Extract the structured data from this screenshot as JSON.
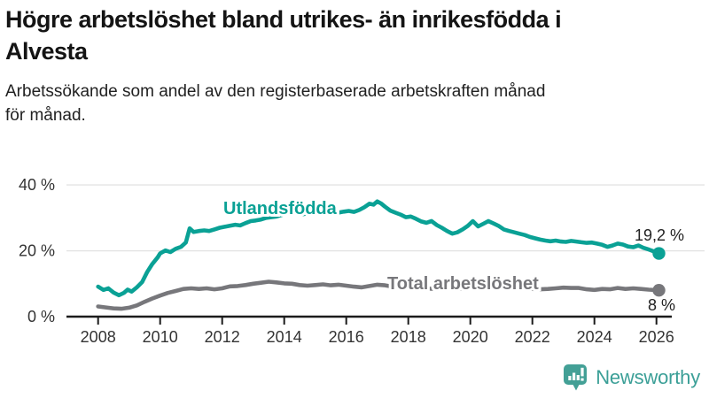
{
  "header": {
    "title_line1": "Högre arbetslöshet bland utrikes- än inrikesfödda i",
    "title_line2": "Alvesta",
    "subtitle_line1": "Arbetssökande som andel av den registerbaserade arbetskraften månad",
    "subtitle_line2": "för månad."
  },
  "chart_data": {
    "type": "line",
    "title": "Högre arbetslöshet bland utrikes- än inrikesfödda i Alvesta",
    "subtitle": "Arbetssökande som andel av den registerbaserade arbetskraften månad för månad.",
    "grid": "horizontal",
    "x_axis": {
      "ticks": [
        2008,
        2010,
        2012,
        2014,
        2016,
        2018,
        2020,
        2022,
        2024,
        2026
      ],
      "range": [
        2007.6,
        2026.6
      ]
    },
    "y_axis": {
      "unit": "%",
      "tick_values": [
        0,
        20,
        40
      ],
      "tick_labels": [
        "0 %",
        "20 %",
        "40 %"
      ],
      "range": [
        0,
        40
      ]
    },
    "series": [
      {
        "id": "utlandsfodda",
        "name": "Utlandsfödda",
        "color": "#0aa195",
        "end_label": "19,2 %",
        "points": [
          [
            2008.0,
            9.1
          ],
          [
            2008.17,
            8.1
          ],
          [
            2008.33,
            8.6
          ],
          [
            2008.5,
            7.3
          ],
          [
            2008.67,
            6.5
          ],
          [
            2008.83,
            7.2
          ],
          [
            2008.95,
            8.2
          ],
          [
            2009.08,
            7.6
          ],
          [
            2009.25,
            8.9
          ],
          [
            2009.42,
            10.5
          ],
          [
            2009.58,
            13.5
          ],
          [
            2009.75,
            16.0
          ],
          [
            2009.92,
            18.0
          ],
          [
            2010.0,
            19.2
          ],
          [
            2010.17,
            20.1
          ],
          [
            2010.33,
            19.6
          ],
          [
            2010.5,
            20.6
          ],
          [
            2010.67,
            21.2
          ],
          [
            2010.83,
            22.5
          ],
          [
            2010.95,
            26.8
          ],
          [
            2011.08,
            25.7
          ],
          [
            2011.25,
            26.0
          ],
          [
            2011.42,
            26.2
          ],
          [
            2011.58,
            26.0
          ],
          [
            2011.75,
            26.5
          ],
          [
            2011.92,
            27.0
          ],
          [
            2012.08,
            27.3
          ],
          [
            2012.25,
            27.6
          ],
          [
            2012.42,
            27.9
          ],
          [
            2012.58,
            27.7
          ],
          [
            2012.75,
            28.4
          ],
          [
            2012.92,
            29.0
          ],
          [
            2013.08,
            29.2
          ],
          [
            2013.25,
            29.5
          ],
          [
            2013.42,
            30.0
          ],
          [
            2013.58,
            30.2
          ],
          [
            2013.75,
            30.4
          ],
          [
            2013.92,
            30.9
          ],
          [
            2014.08,
            31.3
          ],
          [
            2014.25,
            31.7
          ],
          [
            2014.42,
            31.4
          ],
          [
            2014.58,
            31.1
          ],
          [
            2014.75,
            31.3
          ],
          [
            2014.92,
            31.6
          ],
          [
            2015.08,
            31.4
          ],
          [
            2015.25,
            31.7
          ],
          [
            2015.42,
            31.5
          ],
          [
            2015.58,
            31.8
          ],
          [
            2015.75,
            31.6
          ],
          [
            2015.92,
            31.9
          ],
          [
            2016.08,
            32.1
          ],
          [
            2016.25,
            31.8
          ],
          [
            2016.42,
            32.4
          ],
          [
            2016.58,
            33.2
          ],
          [
            2016.75,
            34.3
          ],
          [
            2016.88,
            34.0
          ],
          [
            2017.0,
            35.0
          ],
          [
            2017.13,
            34.3
          ],
          [
            2017.25,
            33.4
          ],
          [
            2017.42,
            32.2
          ],
          [
            2017.58,
            31.6
          ],
          [
            2017.75,
            31.0
          ],
          [
            2017.92,
            30.2
          ],
          [
            2018.08,
            30.4
          ],
          [
            2018.25,
            29.7
          ],
          [
            2018.42,
            28.9
          ],
          [
            2018.58,
            28.5
          ],
          [
            2018.75,
            29.0
          ],
          [
            2018.92,
            27.8
          ],
          [
            2019.08,
            27.0
          ],
          [
            2019.25,
            26.0
          ],
          [
            2019.42,
            25.2
          ],
          [
            2019.58,
            25.6
          ],
          [
            2019.75,
            26.5
          ],
          [
            2019.92,
            27.6
          ],
          [
            2020.08,
            29.0
          ],
          [
            2020.25,
            27.4
          ],
          [
            2020.42,
            28.2
          ],
          [
            2020.58,
            29.0
          ],
          [
            2020.75,
            28.3
          ],
          [
            2020.92,
            27.5
          ],
          [
            2021.08,
            26.5
          ],
          [
            2021.25,
            26.0
          ],
          [
            2021.42,
            25.6
          ],
          [
            2021.58,
            25.2
          ],
          [
            2021.75,
            24.8
          ],
          [
            2021.92,
            24.2
          ],
          [
            2022.08,
            23.8
          ],
          [
            2022.25,
            23.4
          ],
          [
            2022.42,
            23.1
          ],
          [
            2022.58,
            22.9
          ],
          [
            2022.75,
            23.1
          ],
          [
            2022.92,
            22.8
          ],
          [
            2023.08,
            22.7
          ],
          [
            2023.25,
            23.0
          ],
          [
            2023.42,
            22.8
          ],
          [
            2023.58,
            22.6
          ],
          [
            2023.75,
            22.4
          ],
          [
            2023.92,
            22.5
          ],
          [
            2024.08,
            22.2
          ],
          [
            2024.25,
            21.8
          ],
          [
            2024.42,
            21.2
          ],
          [
            2024.58,
            21.6
          ],
          [
            2024.75,
            22.2
          ],
          [
            2024.92,
            21.9
          ],
          [
            2025.08,
            21.3
          ],
          [
            2025.25,
            21.1
          ],
          [
            2025.42,
            21.6
          ],
          [
            2025.58,
            20.9
          ],
          [
            2025.75,
            20.4
          ],
          [
            2025.92,
            19.8
          ],
          [
            2026.08,
            19.2
          ]
        ]
      },
      {
        "id": "total",
        "name": "Total arbetslöshet",
        "color": "#77777b",
        "end_label": "8 %",
        "points": [
          [
            2008.0,
            3.1
          ],
          [
            2008.25,
            2.8
          ],
          [
            2008.5,
            2.5
          ],
          [
            2008.75,
            2.4
          ],
          [
            2009.0,
            2.7
          ],
          [
            2009.25,
            3.4
          ],
          [
            2009.5,
            4.5
          ],
          [
            2009.75,
            5.5
          ],
          [
            2010.0,
            6.4
          ],
          [
            2010.25,
            7.2
          ],
          [
            2010.5,
            7.8
          ],
          [
            2010.75,
            8.4
          ],
          [
            2011.0,
            8.6
          ],
          [
            2011.25,
            8.4
          ],
          [
            2011.5,
            8.6
          ],
          [
            2011.75,
            8.3
          ],
          [
            2012.0,
            8.6
          ],
          [
            2012.25,
            9.2
          ],
          [
            2012.5,
            9.3
          ],
          [
            2012.75,
            9.6
          ],
          [
            2013.0,
            10.0
          ],
          [
            2013.25,
            10.3
          ],
          [
            2013.5,
            10.6
          ],
          [
            2013.75,
            10.4
          ],
          [
            2014.0,
            10.1
          ],
          [
            2014.25,
            10.0
          ],
          [
            2014.5,
            9.6
          ],
          [
            2014.75,
            9.4
          ],
          [
            2015.0,
            9.6
          ],
          [
            2015.25,
            9.8
          ],
          [
            2015.5,
            9.5
          ],
          [
            2015.75,
            9.7
          ],
          [
            2016.0,
            9.4
          ],
          [
            2016.25,
            9.1
          ],
          [
            2016.5,
            8.9
          ],
          [
            2016.75,
            9.3
          ],
          [
            2017.0,
            9.7
          ],
          [
            2017.25,
            9.5
          ],
          [
            2017.5,
            9.1
          ],
          [
            2017.75,
            9.0
          ],
          [
            2018.0,
            8.9
          ],
          [
            2018.25,
            8.7
          ],
          [
            2018.5,
            8.6
          ],
          [
            2018.75,
            8.5
          ],
          [
            2019.0,
            8.4
          ],
          [
            2019.25,
            8.3
          ],
          [
            2019.5,
            8.4
          ],
          [
            2019.75,
            8.6
          ],
          [
            2020.0,
            8.8
          ],
          [
            2020.25,
            9.4
          ],
          [
            2020.5,
            9.6
          ],
          [
            2020.75,
            9.4
          ],
          [
            2021.0,
            9.2
          ],
          [
            2021.25,
            8.9
          ],
          [
            2021.5,
            8.7
          ],
          [
            2021.75,
            8.5
          ],
          [
            2022.0,
            8.4
          ],
          [
            2022.25,
            8.3
          ],
          [
            2022.5,
            8.4
          ],
          [
            2022.75,
            8.6
          ],
          [
            2023.0,
            8.8
          ],
          [
            2023.25,
            8.7
          ],
          [
            2023.5,
            8.7
          ],
          [
            2023.75,
            8.3
          ],
          [
            2024.0,
            8.1
          ],
          [
            2024.25,
            8.4
          ],
          [
            2024.5,
            8.3
          ],
          [
            2024.75,
            8.7
          ],
          [
            2025.0,
            8.4
          ],
          [
            2025.25,
            8.6
          ],
          [
            2025.5,
            8.4
          ],
          [
            2025.75,
            8.2
          ],
          [
            2026.08,
            8.0
          ]
        ]
      }
    ]
  },
  "footer": {
    "brand": "Newsworthy",
    "brand_color": "#3b9f97",
    "logo_icon": "bar-chart-speech-bubble"
  }
}
